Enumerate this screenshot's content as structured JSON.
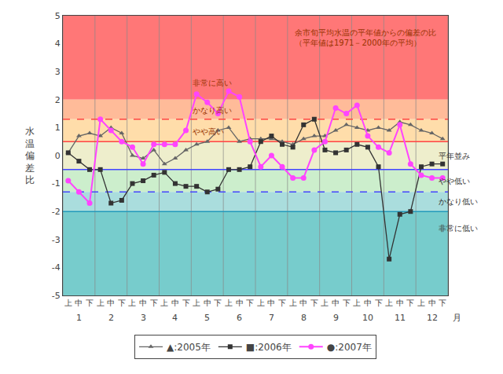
{
  "chart_data": {
    "type": "line",
    "annotation": "余市旬平均水温の平年値からの偏差の比\n（平年値は1971－2000年の平均）",
    "ylabel": "水\n温\n偏\n差\n比",
    "xlabel": "月",
    "categories": [
      "上",
      "中",
      "下",
      "上",
      "中",
      "下",
      "上",
      "中",
      "下",
      "上",
      "中",
      "下",
      "上",
      "中",
      "下",
      "上",
      "中",
      "下",
      "上",
      "中",
      "下",
      "上",
      "中",
      "下",
      "上",
      "中",
      "下",
      "上",
      "中",
      "下",
      "上",
      "中",
      "下",
      "上",
      "中",
      "下"
    ],
    "month_labels": [
      1,
      2,
      3,
      4,
      5,
      6,
      7,
      8,
      9,
      10,
      11,
      12
    ],
    "ylim": [
      -5,
      5
    ],
    "yticks": [
      -5,
      -4,
      -3,
      -2,
      -1,
      0,
      1,
      2,
      3,
      4,
      5
    ],
    "grid": "x",
    "legend": "bottom",
    "bands": [
      {
        "from": 2.0,
        "to": 5,
        "color": "#FF7777"
      },
      {
        "from": 1.3,
        "to": 2.0,
        "color": "#FFBB99"
      },
      {
        "from": 0.5,
        "to": 1.3,
        "color": "#FFDDAA"
      },
      {
        "from": -0.5,
        "to": 0.5,
        "color": "#EEEECC"
      },
      {
        "from": -1.3,
        "to": -0.5,
        "color": "#CCEECC"
      },
      {
        "from": -2.0,
        "to": -1.3,
        "color": "#AADDDD"
      },
      {
        "from": -5,
        "to": -2.0,
        "color": "#77CCCC"
      }
    ],
    "reference_lines": [
      {
        "y": 0.5,
        "color": "#FF4444",
        "line_style": "solid"
      },
      {
        "y": 1.3,
        "color": "#FF4444",
        "line_style": "dashed"
      },
      {
        "y": -0.5,
        "color": "#4444FF",
        "line_style": "solid"
      },
      {
        "y": -1.3,
        "color": "#4444FF",
        "line_style": "dashed"
      },
      {
        "y": -2.0,
        "color": "#2299BB",
        "line_style": "solid"
      }
    ],
    "zone_labels": [
      {
        "text": "非常に高い",
        "y": 2.6,
        "side": "left",
        "color": "#993300"
      },
      {
        "text": "かなり高い",
        "y": 1.62,
        "side": "left",
        "color": "#993300"
      },
      {
        "text": "やや高い",
        "y": 0.87,
        "side": "left",
        "color": "#993300"
      },
      {
        "text": "平年並み",
        "y": 0.0,
        "side": "right",
        "color": "#333333"
      },
      {
        "text": "やや低い",
        "y": -0.9,
        "side": "right",
        "color": "#333333"
      },
      {
        "text": "かなり低い",
        "y": -1.65,
        "side": "right",
        "color": "#333333"
      },
      {
        "text": "非常に低い",
        "y": -2.6,
        "side": "right",
        "color": "#333333"
      }
    ],
    "annotation_color": "#993300",
    "series": [
      {
        "name": "▲:2005年",
        "color": "#666666",
        "marker": "triangle-up",
        "values": [
          0.1,
          0.7,
          0.8,
          0.7,
          1.0,
          0.8,
          0.0,
          -0.1,
          0.2,
          -0.3,
          -0.1,
          0.2,
          0.4,
          0.5,
          0.9,
          1.0,
          0.5,
          0.6,
          0.6,
          0.6,
          0.5,
          0.4,
          0.6,
          0.7,
          0.7,
          0.9,
          1.1,
          1.0,
          0.9,
          1.0,
          0.9,
          1.2,
          1.1,
          0.9,
          0.8,
          0.6
        ]
      },
      {
        "name": "■:2006年",
        "color": "#333333",
        "marker": "square",
        "values": [
          0.1,
          -0.2,
          -0.5,
          -0.5,
          -1.7,
          -1.6,
          -1.0,
          -0.9,
          -0.7,
          -0.6,
          -1.0,
          -1.1,
          -1.1,
          -1.3,
          -1.2,
          -0.5,
          -0.5,
          -0.4,
          0.5,
          0.7,
          0.4,
          0.3,
          1.1,
          1.3,
          0.2,
          0.1,
          0.2,
          0.4,
          0.3,
          -0.4,
          -3.7,
          -2.1,
          -2.0,
          -0.4,
          -0.3,
          -0.3
        ]
      },
      {
        "name": "●:2007年",
        "color": "#FF44FF",
        "marker": "circle",
        "values": [
          -0.9,
          -1.3,
          -1.7,
          1.3,
          0.9,
          0.5,
          0.3,
          -0.3,
          0.4,
          0.4,
          0.4,
          0.9,
          2.2,
          1.9,
          1.5,
          2.3,
          2.1,
          0.5,
          -0.4,
          0.0,
          -0.4,
          -0.8,
          -0.8,
          0.2,
          0.5,
          1.7,
          1.5,
          1.8,
          0.7,
          0.3,
          0.1,
          1.1,
          -0.3,
          -0.7,
          -0.8,
          -0.8
        ]
      }
    ]
  }
}
